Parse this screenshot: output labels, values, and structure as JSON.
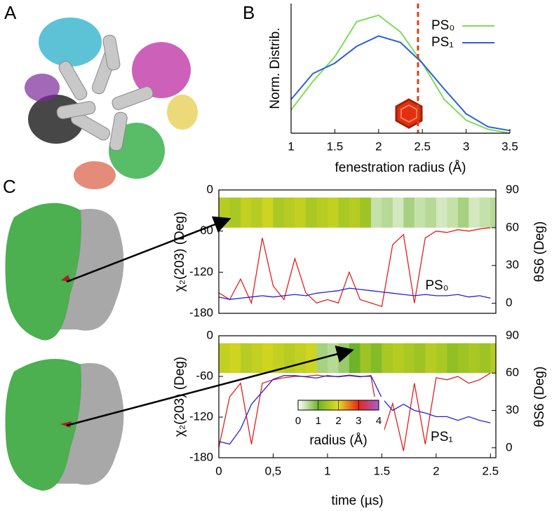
{
  "panels": [
    "A",
    "B",
    "C"
  ],
  "chart_data": [
    {
      "type": "line",
      "xlabel": "fenestration radius (Å)",
      "ylabel": "Norm. Distrib.",
      "x": [
        1,
        1.25,
        1.5,
        1.75,
        2,
        2.25,
        2.5,
        2.75,
        3,
        3.25,
        3.5
      ],
      "xlim": [
        1,
        3.5
      ],
      "xticks": [
        1,
        1.5,
        2,
        2.5,
        3,
        3.5
      ],
      "ylim": [
        0,
        1
      ],
      "series": [
        {
          "name": "PS₀",
          "color": "#7ddc5a",
          "values": [
            0.18,
            0.4,
            0.59,
            0.86,
            0.91,
            0.78,
            0.54,
            0.26,
            0.1,
            0.03,
            0
          ]
        },
        {
          "name": "PS₁",
          "color": "#2e5fd8",
          "values": [
            0.26,
            0.46,
            0.54,
            0.67,
            0.75,
            0.7,
            0.54,
            0.34,
            0.15,
            0.05,
            0.02
          ]
        }
      ],
      "vline": {
        "x": 2.45,
        "color": "#d9401e"
      },
      "legend": "upper right"
    },
    {
      "type": "line",
      "ylabel": "χ₂(203) (Deg)",
      "y2label": "θS6 (Deg)",
      "x": [
        0,
        0.1,
        0.2,
        0.3,
        0.4,
        0.5,
        0.6,
        0.7,
        0.8,
        0.9,
        1,
        1.1,
        1.2,
        1.3,
        1.4,
        1.5,
        1.6,
        1.7,
        1.8,
        1.9,
        2,
        2.1,
        2.2,
        2.3,
        2.4,
        2.5
      ],
      "xlim": [
        0,
        2.55
      ],
      "ylim": [
        -180,
        0
      ],
      "yticks": [
        0,
        -60,
        -120,
        -180
      ],
      "y2lim": [
        -8,
        90
      ],
      "y2ticks": [
        0,
        30,
        60,
        90
      ],
      "series": [
        {
          "color": "#e0201c",
          "values": [
            -150,
            -160,
            -130,
            -165,
            -70,
            -140,
            -160,
            -100,
            -150,
            -165,
            -160,
            -165,
            -120,
            -160,
            -165,
            -170,
            -80,
            -65,
            -165,
            -70,
            -60,
            -62,
            -58,
            -60,
            -57,
            -55
          ]
        },
        {
          "color": "#2222d0",
          "axis": "y2",
          "values": [
            5,
            3,
            4,
            5,
            6,
            5,
            6,
            7,
            6,
            8,
            9,
            10,
            12,
            11,
            10,
            9,
            8,
            7,
            6,
            7,
            6,
            6,
            7,
            5,
            6,
            4
          ]
        }
      ],
      "radius": [
        1.6,
        1.5,
        1.7,
        1.6,
        1.8,
        1.5,
        1.6,
        1.7,
        1.5,
        1.6,
        1.7,
        1.5,
        1.6,
        1.4,
        0.4,
        0.5,
        0.3,
        0.6,
        0.4,
        0.5,
        0.3,
        0.4,
        0.6,
        0.3,
        0.4,
        0.5
      ],
      "annotation": {
        "text": "PS₀",
        "x": 1.9,
        "y": -140
      }
    },
    {
      "type": "line",
      "xlabel": "time (µs)",
      "ylabel": "χ₂(203) (Deg)",
      "y2label": "θS6 (Deg)",
      "x": [
        0,
        0.1,
        0.2,
        0.3,
        0.4,
        0.5,
        0.6,
        0.7,
        0.8,
        0.9,
        1,
        1.1,
        1.2,
        1.3,
        1.4,
        1.5,
        1.6,
        1.7,
        1.8,
        1.9,
        2,
        2.1,
        2.2,
        2.3,
        2.4,
        2.5
      ],
      "xlim": [
        0,
        2.55
      ],
      "xticks": [
        0,
        {
          "value": 0.5,
          "label": "0,5"
        },
        1,
        1.5,
        2,
        2.5
      ],
      "ylim": [
        -180,
        0
      ],
      "yticks": [
        0,
        -60,
        -120,
        -180
      ],
      "y2lim": [
        -8,
        90
      ],
      "y2ticks": [
        0,
        30,
        60,
        90
      ],
      "series": [
        {
          "color": "#e0201c",
          "values": [
            -165,
            -90,
            -70,
            -160,
            -70,
            -65,
            -62,
            -60,
            -60,
            -58,
            -60,
            -60,
            -58,
            -60,
            -60,
            -150,
            -100,
            -170,
            -70,
            -160,
            -62,
            -65,
            -60,
            -70,
            -65,
            -55
          ]
        },
        {
          "color": "#2222d0",
          "axis": "y2",
          "values": [
            5,
            3,
            15,
            35,
            45,
            55,
            58,
            58,
            57,
            56,
            58,
            57,
            58,
            57,
            58,
            40,
            30,
            35,
            30,
            28,
            25,
            25,
            22,
            25,
            22,
            20
          ]
        }
      ],
      "radius": [
        1.7,
        1.8,
        1.6,
        1.7,
        1.8,
        1.7,
        1.6,
        1.7,
        1.8,
        0.6,
        0.5,
        0.7,
        1.0,
        1.4,
        1.2,
        1.5,
        1.6,
        1.5,
        1.4,
        1.6,
        1.5,
        1.3,
        1.4,
        1.5,
        1.4,
        1.6
      ],
      "annotation": {
        "text": "PS₁",
        "x": 1.95,
        "y": -150
      },
      "colorbar": {
        "label": "radius (Å)",
        "ticks": [
          0,
          1,
          2,
          3,
          4
        ],
        "colors": [
          "#ffffff",
          "#6db32a",
          "#e6dc1e",
          "#e8261c",
          "#a45fd6"
        ]
      }
    }
  ]
}
